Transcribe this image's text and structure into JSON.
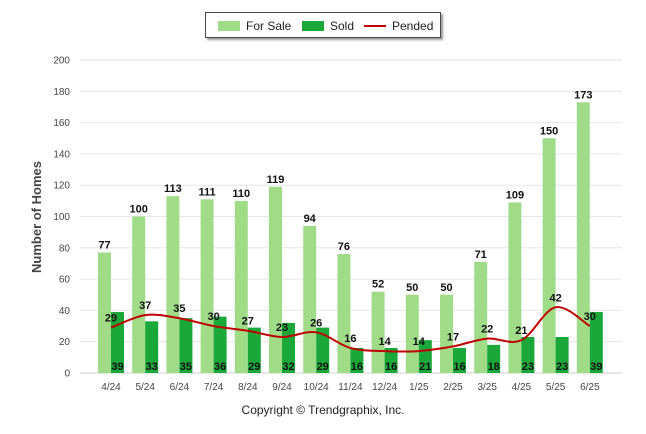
{
  "legend": {
    "for_sale": "For Sale",
    "sold": "Sold",
    "pended": "Pended"
  },
  "copyright": "Copyright © Trendgraphix, Inc.",
  "colors": {
    "for_sale": "#a0dc88",
    "sold": "#1aa83a",
    "pended": "#c00000",
    "grid": "#e6e6e6",
    "axis_text": "#444444"
  },
  "chart_data": {
    "type": "bar",
    "title": "",
    "xlabel": "",
    "ylabel": "Number of Homes",
    "ylim": [
      0,
      200
    ],
    "yticks": [
      0,
      20,
      40,
      60,
      80,
      100,
      120,
      140,
      160,
      180,
      200
    ],
    "grid": true,
    "legend_position": "top-center",
    "categories": [
      "4/24",
      "5/24",
      "6/24",
      "7/24",
      "8/24",
      "9/24",
      "10/24",
      "11/24",
      "12/24",
      "1/25",
      "2/25",
      "3/25",
      "4/25",
      "5/25",
      "6/25"
    ],
    "series": [
      {
        "name": "For Sale",
        "type": "bar",
        "values": [
          77,
          100,
          113,
          111,
          110,
          119,
          94,
          76,
          52,
          50,
          50,
          71,
          109,
          150,
          173
        ]
      },
      {
        "name": "Sold",
        "type": "bar",
        "values": [
          39,
          33,
          35,
          36,
          29,
          32,
          29,
          16,
          16,
          21,
          16,
          18,
          23,
          23,
          39
        ]
      },
      {
        "name": "Pended",
        "type": "line",
        "values": [
          29,
          37,
          35,
          30,
          27,
          23,
          26,
          16,
          14,
          14,
          17,
          22,
          21,
          42,
          30
        ]
      }
    ]
  }
}
